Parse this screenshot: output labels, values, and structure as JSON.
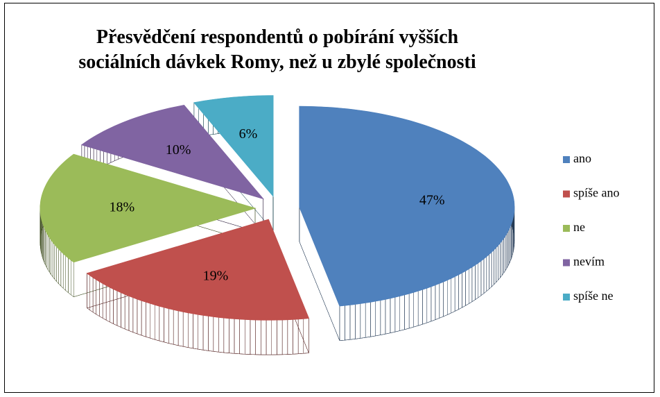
{
  "chart_data": {
    "type": "pie3d",
    "title": "Přesvědčení respondentů o pobírání vyšších sociálních dávkek Romy, než u zbylé společnosti",
    "categories": [
      "ano",
      "spíše ano",
      "ne",
      "nevím",
      "spíše ne"
    ],
    "values": [
      47,
      19,
      18,
      10,
      6
    ],
    "value_labels": [
      "47%",
      "19%",
      "18%",
      "10%",
      "6%"
    ],
    "colors": [
      "#4f81bd",
      "#c0504d",
      "#9bbb59",
      "#8064a2",
      "#4bacc6"
    ],
    "legend": "right"
  }
}
